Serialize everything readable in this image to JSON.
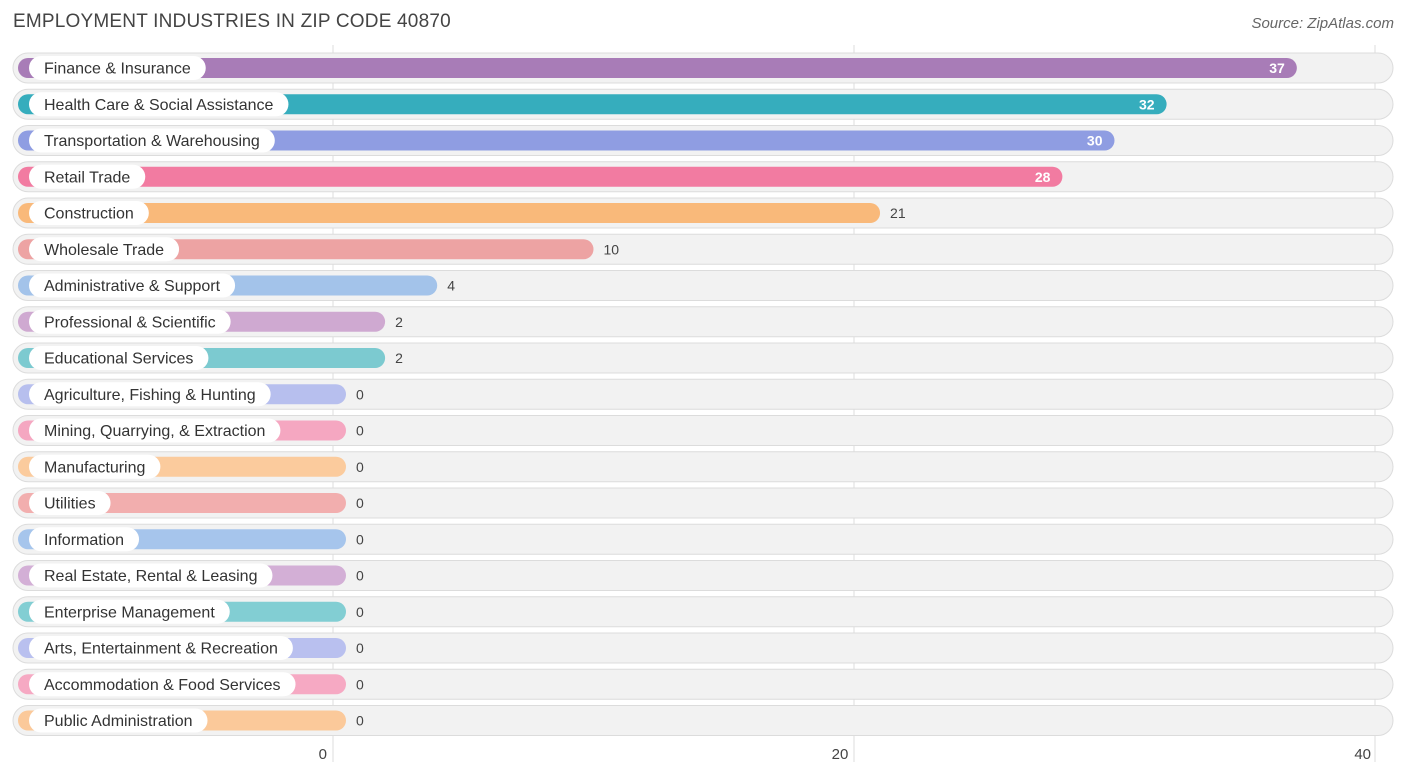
{
  "title": "EMPLOYMENT INDUSTRIES IN ZIP CODE 40870",
  "source": "Source: ZipAtlas.com",
  "chart_data": {
    "type": "bar",
    "orientation": "horizontal",
    "categories": [
      "Finance & Insurance",
      "Health Care & Social Assistance",
      "Transportation & Warehousing",
      "Retail Trade",
      "Construction",
      "Wholesale Trade",
      "Administrative & Support",
      "Professional & Scientific",
      "Educational Services",
      "Agriculture, Fishing & Hunting",
      "Mining, Quarrying, & Extraction",
      "Manufacturing",
      "Utilities",
      "Information",
      "Real Estate, Rental & Leasing",
      "Enterprise Management",
      "Arts, Entertainment & Recreation",
      "Accommodation & Food Services",
      "Public Administration"
    ],
    "values": [
      37,
      32,
      30,
      28,
      21,
      10,
      4,
      2,
      2,
      0,
      0,
      0,
      0,
      0,
      0,
      0,
      0,
      0,
      0
    ],
    "colors": [
      "#a87cb7",
      "#36adbd",
      "#8f9de2",
      "#f27ba1",
      "#f9b97a",
      "#eda3a3",
      "#a3c3ea",
      "#cfa9d1",
      "#7ccad0",
      "#b7bfee",
      "#f5a7c1",
      "#fbcb9d",
      "#f2aeae",
      "#a6c5ec",
      "#d3afd6",
      "#82ced3",
      "#b9c0ef",
      "#f6a9c3",
      "#fbc99a"
    ],
    "xlim": [
      0,
      40
    ],
    "xticks": [
      0,
      20,
      40
    ],
    "xtick_labels": [
      "0",
      "20",
      "40"
    ],
    "grid": true
  }
}
